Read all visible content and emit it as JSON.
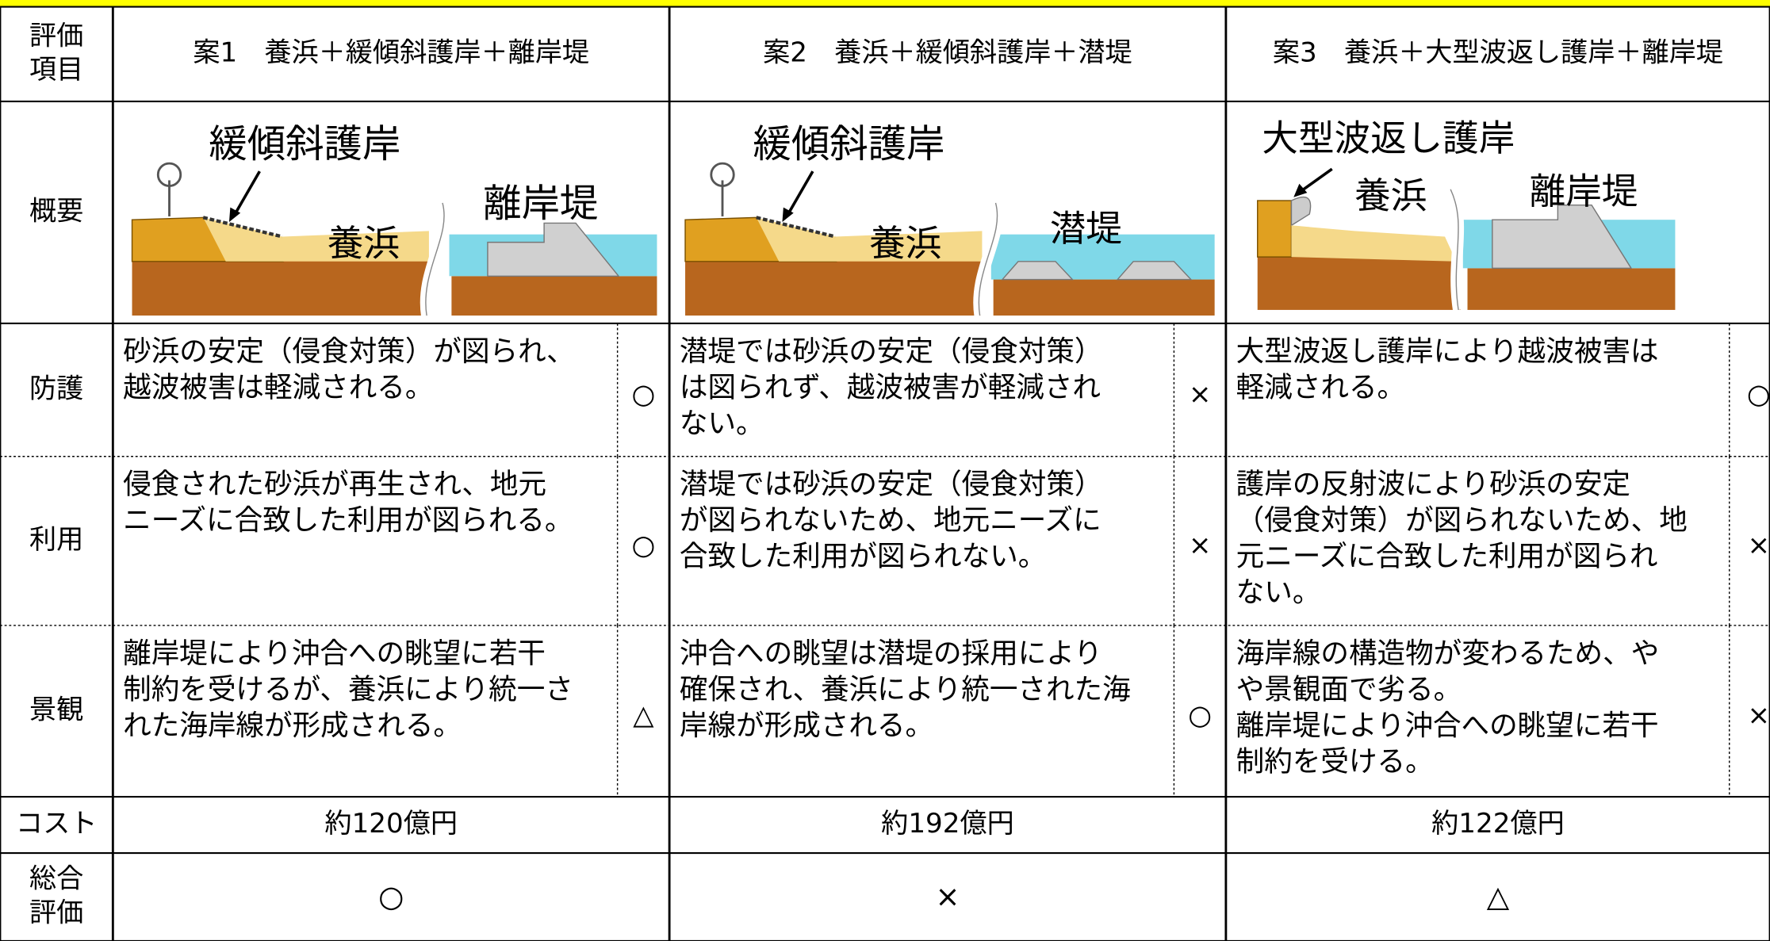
{
  "table": {
    "header": {
      "label": [
        "評価",
        "項目"
      ],
      "plans": [
        "案1　養浜＋緩傾斜護岸＋離岸堤",
        "案2　養浜＋緩傾斜護岸＋潜堤",
        "案3　養浜＋大型波返し護岸＋離岸堤"
      ]
    },
    "overview": {
      "label": [
        "概要"
      ],
      "diagrams": [
        {
          "labels": [
            "緩傾斜護岸",
            "養浜",
            "離岸堤"
          ]
        },
        {
          "labels": [
            "緩傾斜護岸",
            "養浜",
            "潜堤"
          ]
        },
        {
          "labels": [
            "大型波返し護岸",
            "養浜",
            "離岸堤"
          ]
        }
      ]
    },
    "rows": [
      {
        "label": [
          "防護"
        ],
        "cells": [
          {
            "text": [
              "砂浜の安定（侵食対策）が図られ、",
              "越波被害は軽減される。"
            ],
            "mark": "○"
          },
          {
            "text": [
              "潜堤では砂浜の安定（侵食対策）",
              "は図られず、越波被害が軽減され",
              "ない。"
            ],
            "mark": "×"
          },
          {
            "text": [
              "大型波返し護岸により越波被害は",
              "軽減される。"
            ],
            "mark": "○"
          }
        ]
      },
      {
        "label": [
          "利用"
        ],
        "cells": [
          {
            "text": [
              "侵食された砂浜が再生され、地元",
              "ニーズに合致した利用が図られる。"
            ],
            "mark": "○"
          },
          {
            "text": [
              "潜堤では砂浜の安定（侵食対策）",
              "が図られないため、地元ニーズに",
              "合致した利用が図られない。"
            ],
            "mark": "×"
          },
          {
            "text": [
              "護岸の反射波により砂浜の安定",
              "（侵食対策）が図られないため、地",
              "元ニーズに合致した利用が図られ",
              "ない。"
            ],
            "mark": "×"
          }
        ]
      },
      {
        "label": [
          "景観"
        ],
        "cells": [
          {
            "text": [
              "離岸堤により沖合への眺望に若干",
              "制約を受けるが、養浜により統一さ",
              "れた海岸線が形成される。"
            ],
            "mark": "△"
          },
          {
            "text": [
              "沖合への眺望は潜堤の採用により",
              "確保され、養浜により統一された海",
              "岸線が形成される。"
            ],
            "mark": "○"
          },
          {
            "text": [
              "海岸線の構造物が変わるため、や",
              "や景観面で劣る。",
              "離岸堤により沖合への眺望に若干",
              "制約を受ける。"
            ],
            "mark": "×"
          }
        ]
      }
    ],
    "cost": {
      "label": [
        "コスト"
      ],
      "values": [
        "約120億円",
        "約192億円",
        "約122億円"
      ]
    },
    "overall": {
      "label": [
        "総合",
        "評価"
      ],
      "values": [
        "○",
        "×",
        "△"
      ]
    }
  }
}
